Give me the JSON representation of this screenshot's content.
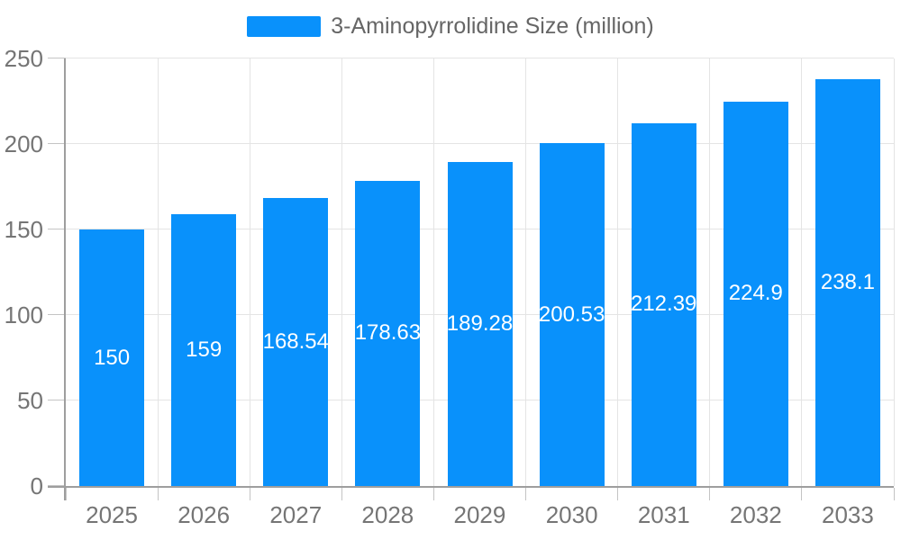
{
  "chart_data": {
    "type": "bar",
    "title": "3-Aminopyrrolidine Size (million)",
    "legend_position": "top-center",
    "categories": [
      "2025",
      "2026",
      "2027",
      "2028",
      "2029",
      "2030",
      "2031",
      "2032",
      "2033"
    ],
    "values": [
      150,
      159,
      168.54,
      178.63,
      189.28,
      200.53,
      212.39,
      224.9,
      238.1
    ],
    "series_name": "3-Aminopyrrolidine Size (million)",
    "xlabel": "",
    "ylabel": "",
    "ylim": [
      0,
      250
    ],
    "ytick_interval": 50,
    "yticks": [
      "0",
      "50",
      "100",
      "150",
      "200",
      "250"
    ],
    "grid": true,
    "value_labels_inside_bars": true,
    "colors": {
      "bar": "#0991fb",
      "value_label": "#ffffff",
      "grid": "#e4e4e4",
      "axis": "#9e9e9e",
      "tick": "#c4c4c4",
      "axis_label": "#757575",
      "legend_text": "#666666",
      "background": "#ffffff"
    }
  }
}
